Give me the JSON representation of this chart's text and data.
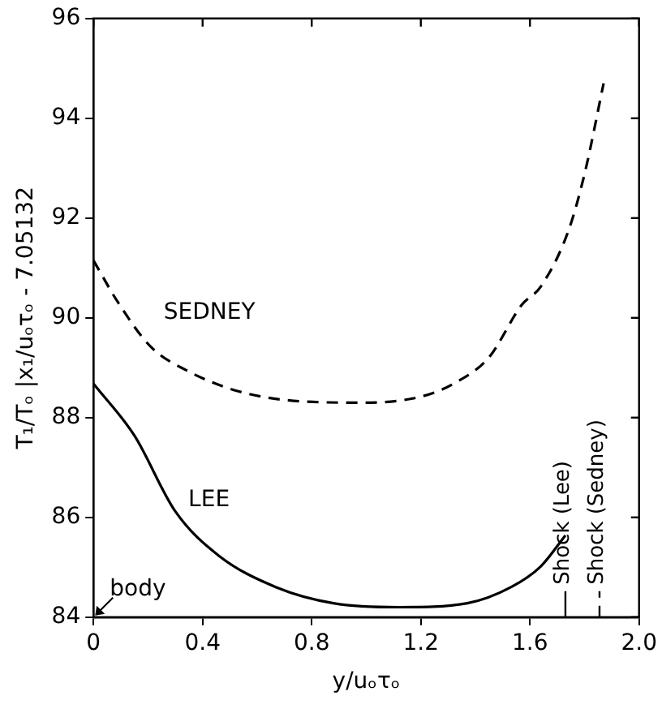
{
  "chart_data": {
    "type": "line",
    "xlabel": "y/uₒτₒ",
    "ylabel": "T₁/Tₒ |x₁/uₒτₒ - 7.05132",
    "xlim": [
      0,
      2.0
    ],
    "xticks": [
      0,
      0.4,
      0.8,
      1.2,
      1.6,
      {
        "value": 2.0,
        "label": "2.0"
      }
    ],
    "ylim": [
      84,
      96
    ],
    "yticks": [
      84,
      86,
      88,
      90,
      92,
      94,
      96
    ],
    "grid": false,
    "legend": false,
    "marker": "none",
    "series": [
      {
        "name": "SEDNEY",
        "color": "#000000",
        "line_style": "dashed",
        "x": [
          0,
          0.09,
          0.21,
          0.34,
          0.53,
          0.78,
          0.99,
          1.2,
          1.32,
          1.45,
          1.57,
          1.64,
          1.74,
          1.8,
          1.87
        ],
        "values": [
          91.15,
          90.31,
          89.42,
          88.95,
          88.53,
          88.32,
          88.3,
          88.42,
          88.68,
          89.21,
          90.26,
          90.63,
          91.73,
          92.88,
          94.7
        ]
      },
      {
        "name": "LEE",
        "color": "#000000",
        "line_style": "solid",
        "x": [
          0,
          0.15,
          0.3,
          0.46,
          0.67,
          0.88,
          1.12,
          1.37,
          1.53,
          1.64,
          1.73
        ],
        "values": [
          88.68,
          87.64,
          86.12,
          85.23,
          84.6,
          84.28,
          84.2,
          84.28,
          84.6,
          85.02,
          85.64
        ]
      }
    ],
    "ref_lines": [
      {
        "axis": "x",
        "value": 1.73,
        "label": "Shock (Lee)",
        "line_style": "solid"
      },
      {
        "axis": "x",
        "value": 1.855,
        "label": "Shock (Sedney)",
        "line_style": "dashed"
      }
    ],
    "annotations": [
      "body"
    ]
  }
}
